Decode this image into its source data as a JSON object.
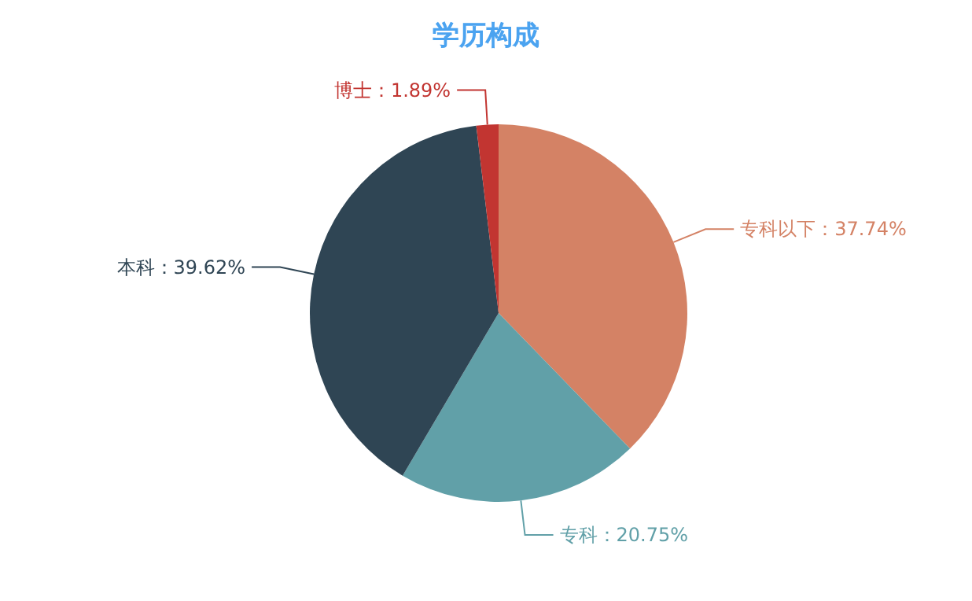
{
  "chart_data": {
    "type": "pie",
    "title": "学历构成",
    "categories": [
      "专科以下",
      "专科",
      "本科",
      "博士"
    ],
    "values": [
      37.74,
      20.75,
      39.62,
      1.89
    ],
    "value_labels": [
      "37.74%",
      "20.75%",
      "39.62%",
      "1.89%"
    ],
    "colors": [
      "#d48265",
      "#61a0a8",
      "#2f4554",
      "#c23531"
    ]
  }
}
